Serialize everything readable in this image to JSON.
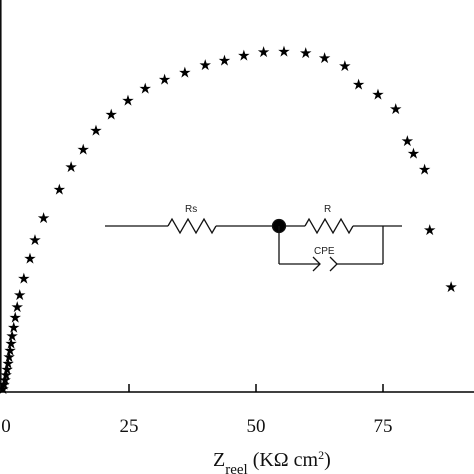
{
  "chart_data": {
    "type": "scatter",
    "title": "",
    "xlabel": "Z",
    "xlabel_sub": "reel",
    "xlabel_unit_prefix": "(KΩ cm",
    "xlabel_unit_exp": "2",
    "xlabel_unit_suffix": ")",
    "ylabel": "",
    "xlim": [
      0,
      91
    ],
    "ylim": [
      0,
      44
    ],
    "grid": false,
    "legend": "none",
    "marker": "★",
    "xticks": [
      0,
      25,
      50,
      75
    ],
    "xtick_labels": [
      "0",
      "25",
      "50",
      "75"
    ],
    "series": [
      {
        "x": [
          0.2,
          0.4,
          0.6,
          0.8,
          1.0,
          1.2,
          1.4,
          1.6,
          1.8,
          2.0,
          2.3,
          2.6,
          3.0,
          3.5,
          4.3,
          5.5,
          6.5,
          8.2,
          11.3,
          13.6,
          16.0,
          18.5,
          21.5,
          24.8,
          28.2,
          32.0,
          36.0,
          40.0,
          43.8,
          47.6,
          51.5,
          55.5,
          59.8,
          63.5,
          67.5,
          70.2,
          74.0,
          77.5,
          79.8,
          81.0,
          83.2,
          84.2,
          88.4
        ],
        "y": [
          0.4,
          0.9,
          1.5,
          2.1,
          2.8,
          3.5,
          4.3,
          5.1,
          6.0,
          6.9,
          8.0,
          9.2,
          10.5,
          12.0,
          14.0,
          16.5,
          18.8,
          21.5,
          25.0,
          27.8,
          30.0,
          32.3,
          34.3,
          36.0,
          37.5,
          38.6,
          39.5,
          40.4,
          41.0,
          41.6,
          42.0,
          42.1,
          41.9,
          41.3,
          40.3,
          38.0,
          36.8,
          35.0,
          31.0,
          29.5,
          27.5,
          20.0,
          13.0
        ]
      }
    ],
    "inset_circuit": {
      "labels": {
        "rs": "Rs",
        "r": "R",
        "cpe": "CPE"
      }
    }
  }
}
